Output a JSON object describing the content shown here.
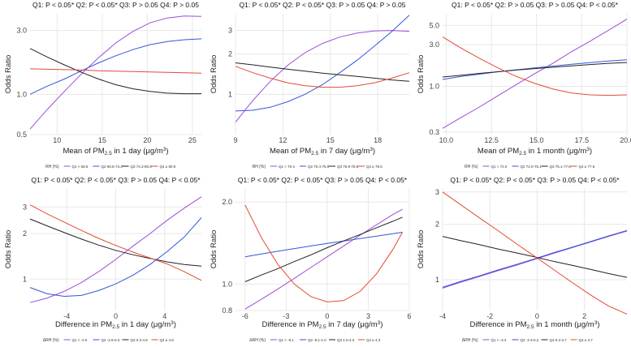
{
  "figure": {
    "colors": {
      "Q1": "#9b4dd9",
      "Q2": "#3355dd",
      "Q3": "#222222",
      "Q4": "#e34a33",
      "grid": "#e8e8e8"
    },
    "ylabel": "Odds Ratio"
  },
  "chart_data": [
    {
      "type": "line",
      "panel": "a",
      "title": "Q1:  P < 0.05*  Q2:  P < 0.05*  Q3:  P > 0.05  Q4:  P > 0.05",
      "xlabel": "Mean of PM2.5 in 1 day (μg/m3)",
      "ylabel": "Odds Ratio",
      "yscale": "log",
      "xlim": [
        7,
        26
      ],
      "ylim": [
        0.5,
        4.0
      ],
      "xticks": [
        10,
        15,
        20,
        25
      ],
      "yticks": [
        0.5,
        1.0,
        3.0
      ],
      "legend_title": "RH (%)",
      "legend": [
        "Q1 < 69.5",
        "Q2 69.5-74.3",
        "Q3 74.3-80.9",
        "Q4 ≥ 80.9"
      ],
      "x": [
        7,
        8.9,
        10.8,
        12.7,
        14.6,
        16.5,
        18.4,
        20.3,
        22.2,
        24.1,
        26
      ],
      "series": [
        {
          "name": "Q1",
          "values": [
            0.55,
            0.77,
            1.05,
            1.42,
            1.88,
            2.42,
            2.95,
            3.42,
            3.72,
            3.85,
            3.82
          ]
        },
        {
          "name": "Q2",
          "values": [
            1.0,
            1.15,
            1.3,
            1.5,
            1.72,
            1.94,
            2.16,
            2.35,
            2.48,
            2.56,
            2.6
          ]
        },
        {
          "name": "Q3",
          "values": [
            2.2,
            1.9,
            1.66,
            1.46,
            1.3,
            1.18,
            1.1,
            1.05,
            1.02,
            1.01,
            1.01
          ]
        },
        {
          "name": "Q4",
          "values": [
            1.55,
            1.54,
            1.53,
            1.52,
            1.5,
            1.49,
            1.48,
            1.47,
            1.46,
            1.45,
            1.44
          ]
        }
      ]
    },
    {
      "type": "line",
      "panel": "b",
      "title": "Q1:  P < 0.05*  Q2:  P < 0.05*  Q3:  P > 0.05  Q4:  P > 0.05",
      "xlabel": "Mean of PM2.5 in 7 day (μg/m3)",
      "ylabel": "Odds Ratio",
      "yscale": "log",
      "xlim": [
        9,
        20
      ],
      "ylim": [
        0.5,
        4.0
      ],
      "xticks": [
        9,
        12,
        15,
        18
      ],
      "yticks": [
        1,
        2,
        3
      ],
      "legend_title": "RH (%)",
      "legend": [
        "Q1 < 70.4",
        "Q2 70.4-75.9",
        "Q3 75.9-78.6",
        "Q4 ≥ 78.6"
      ],
      "x": [
        9,
        10.1,
        11.2,
        12.3,
        13.4,
        14.5,
        15.6,
        16.7,
        17.8,
        18.9,
        20
      ],
      "series": [
        {
          "name": "Q1",
          "values": [
            0.62,
            0.9,
            1.25,
            1.65,
            2.05,
            2.4,
            2.68,
            2.87,
            2.98,
            3.0,
            2.96
          ]
        },
        {
          "name": "Q2",
          "values": [
            0.75,
            0.76,
            0.8,
            0.88,
            1.0,
            1.18,
            1.45,
            1.8,
            2.3,
            2.95,
            3.9
          ]
        },
        {
          "name": "Q3",
          "values": [
            1.72,
            1.66,
            1.6,
            1.54,
            1.49,
            1.44,
            1.4,
            1.36,
            1.32,
            1.28,
            1.25
          ]
        },
        {
          "name": "Q4",
          "values": [
            1.62,
            1.45,
            1.32,
            1.22,
            1.16,
            1.13,
            1.13,
            1.16,
            1.22,
            1.32,
            1.45
          ]
        }
      ]
    },
    {
      "type": "line",
      "panel": "c",
      "title": "Q1:  P < 0.05*  Q2:  P > 0.05  Q3:  P > 0.05  Q4:  P < 0.05*",
      "xlabel": "Mean of PM2.5 in 1 month (μg/m3)",
      "ylabel": "Odds Ratio",
      "yscale": "log",
      "xlim": [
        9.8,
        20
      ],
      "ylim": [
        0.28,
        6.8
      ],
      "xticks": [
        10.0,
        12.5,
        15.0,
        17.5,
        20.0
      ],
      "yticks": [
        0.3,
        1.0,
        3.0,
        5.0
      ],
      "legend_title": "RH (%)",
      "legend": [
        "Q1 < 72.0",
        "Q2 72.0-75.1",
        "Q3 75.1-77.6",
        "Q4 ≥ 77.6"
      ],
      "x": [
        9.8,
        10.82,
        11.84,
        12.86,
        13.88,
        14.9,
        15.92,
        16.94,
        17.96,
        18.98,
        20
      ],
      "series": [
        {
          "name": "Q1",
          "values": [
            0.33,
            0.44,
            0.58,
            0.78,
            1.05,
            1.4,
            1.85,
            2.5,
            3.3,
            4.4,
            5.9
          ]
        },
        {
          "name": "Q2",
          "values": [
            1.2,
            1.3,
            1.38,
            1.47,
            1.55,
            1.63,
            1.71,
            1.79,
            1.87,
            1.95,
            2.02
          ]
        },
        {
          "name": "Q3",
          "values": [
            1.28,
            1.34,
            1.41,
            1.47,
            1.54,
            1.6,
            1.66,
            1.72,
            1.78,
            1.84,
            1.88
          ]
        },
        {
          "name": "Q4",
          "values": [
            3.7,
            2.75,
            2.1,
            1.63,
            1.3,
            1.08,
            0.93,
            0.84,
            0.8,
            0.79,
            0.8
          ]
        }
      ]
    },
    {
      "type": "line",
      "panel": "d",
      "title": "Q1:  P < 0.05*  Q2:  P < 0.05*  Q3:  P > 0.05  Q4:  P < 0.05*",
      "xlabel": "Difference in PM2.5 in 1 day (μg/m3)",
      "ylabel": "Odds Ratio",
      "yscale": "log",
      "xlim": [
        -7,
        7
      ],
      "ylim": [
        0.62,
        4.0
      ],
      "xticks": [
        -4,
        0,
        4
      ],
      "yticks": [
        1,
        2,
        3
      ],
      "legend_title": "ΔRH (%)",
      "legend": [
        "Q1 < -2.6",
        "Q2 -2.6-0.3",
        "Q3 0.3-4.8",
        "Q4 ≥ 4.8"
      ],
      "x": [
        -7,
        -5.6,
        -4.2,
        -2.8,
        -1.4,
        0,
        1.4,
        2.8,
        4.2,
        5.6,
        7
      ],
      "series": [
        {
          "name": "Q1",
          "values": [
            0.7,
            0.75,
            0.83,
            0.95,
            1.12,
            1.35,
            1.65,
            2.0,
            2.45,
            2.95,
            3.5
          ]
        },
        {
          "name": "Q2",
          "values": [
            0.88,
            0.8,
            0.77,
            0.78,
            0.84,
            0.93,
            1.06,
            1.25,
            1.52,
            1.9,
            2.55
          ]
        },
        {
          "name": "Q3",
          "values": [
            2.5,
            2.25,
            2.03,
            1.84,
            1.68,
            1.55,
            1.45,
            1.37,
            1.3,
            1.25,
            1.22
          ]
        },
        {
          "name": "Q4",
          "values": [
            3.1,
            2.7,
            2.38,
            2.1,
            1.86,
            1.67,
            1.51,
            1.38,
            1.26,
            1.12,
            0.98
          ]
        }
      ]
    },
    {
      "type": "line",
      "panel": "e",
      "title": "Q1:  P < 0.05*  Q2:  P < 0.05*  Q3:  P > 0.05  Q4:  P < 0.05*",
      "xlabel": "Difference in PM2.5 in 7 day (μg/m3)",
      "ylabel": "Odds Ratio",
      "yscale": "log",
      "xlim": [
        -6.7,
        6
      ],
      "ylim": [
        0.8,
        2.25
      ],
      "xticks": [
        -6,
        -3,
        0,
        3,
        6
      ],
      "yticks": [
        0.8,
        1.0,
        2.0
      ],
      "legend_title": "ΔRH (%)",
      "legend": [
        "Q1 < -8.1",
        "Q2 -8.1-1.0",
        "Q3 1.0-4.3",
        "Q4 ≥ 4.3"
      ],
      "x": [
        -6,
        -4.8,
        -3.6,
        -2.4,
        -1.2,
        0,
        1.2,
        2.4,
        3.6,
        4.8,
        5.5
      ],
      "series": [
        {
          "name": "Q1",
          "values": [
            0.81,
            0.88,
            0.96,
            1.05,
            1.15,
            1.26,
            1.38,
            1.51,
            1.65,
            1.8,
            1.88
          ]
        },
        {
          "name": "Q2",
          "values": [
            1.26,
            1.29,
            1.32,
            1.35,
            1.38,
            1.41,
            1.44,
            1.47,
            1.5,
            1.53,
            1.55
          ]
        },
        {
          "name": "Q3",
          "values": [
            1.02,
            1.08,
            1.14,
            1.21,
            1.28,
            1.36,
            1.44,
            1.52,
            1.61,
            1.7,
            1.76
          ]
        },
        {
          "name": "Q4",
          "values": [
            1.95,
            1.48,
            1.18,
            1.0,
            0.9,
            0.86,
            0.87,
            0.94,
            1.09,
            1.34,
            1.55
          ]
        }
      ]
    },
    {
      "type": "line",
      "panel": "f",
      "title": "Q1:  P < 0.05*  Q2:  P < 0.05*  Q3:  P > 0.05  Q4:  P < 0.05*",
      "xlabel": "Difference in PM2.5 in 1 month (μg/m3)",
      "ylabel": "Odds Ratio",
      "yscale": "log",
      "xlim": [
        -4,
        3.8
      ],
      "ylim": [
        0.68,
        3.15
      ],
      "xticks": [
        -4,
        -2,
        0,
        2
      ],
      "yticks": [
        1,
        2,
        3
      ],
      "legend_title": "ΔRH (%)",
      "legend": [
        "Q1 < -3.3",
        "Q2 -3.3-0.2",
        "Q3 0.2-3.7",
        "Q4 ≥ 3.7"
      ],
      "x": [
        -4,
        -3.22,
        -2.44,
        -1.66,
        -0.88,
        -0.1,
        0.68,
        1.46,
        2.24,
        3.02,
        3.8
      ],
      "series": [
        {
          "name": "Q1",
          "values": [
            0.9,
            0.97,
            1.04,
            1.12,
            1.2,
            1.29,
            1.39,
            1.49,
            1.6,
            1.72,
            1.84
          ]
        },
        {
          "name": "Q2",
          "values": [
            0.91,
            0.98,
            1.05,
            1.13,
            1.21,
            1.3,
            1.4,
            1.5,
            1.61,
            1.73,
            1.85
          ]
        },
        {
          "name": "Q3",
          "values": [
            1.72,
            1.63,
            1.55,
            1.47,
            1.4,
            1.33,
            1.26,
            1.2,
            1.14,
            1.08,
            1.03
          ]
        },
        {
          "name": "Q4",
          "values": [
            3.0,
            2.55,
            2.17,
            1.85,
            1.57,
            1.34,
            1.14,
            0.97,
            0.83,
            0.72,
            0.65
          ]
        }
      ]
    }
  ]
}
